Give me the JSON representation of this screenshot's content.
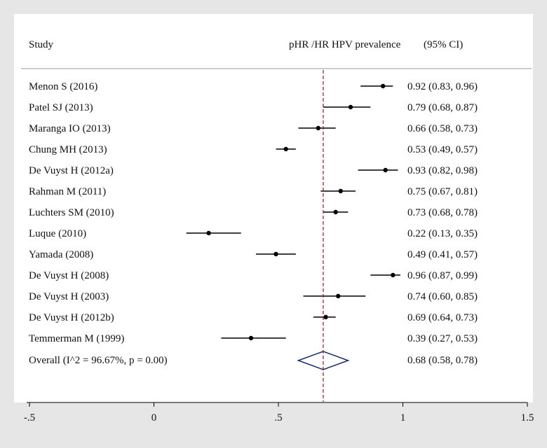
{
  "chart_data": {
    "type": "forest",
    "headers": {
      "study": "Study",
      "estimate": "pHR /HR HPV prevalence",
      "ci": "(95% CI)"
    },
    "studies": [
      {
        "label": "Menon S (2016)",
        "est": 0.92,
        "lo": 0.83,
        "hi": 0.96,
        "text": "0.92 (0.83, 0.96)"
      },
      {
        "label": "Patel SJ (2013)",
        "est": 0.79,
        "lo": 0.68,
        "hi": 0.87,
        "text": "0.79 (0.68, 0.87)"
      },
      {
        "label": "Maranga IO (2013)",
        "est": 0.66,
        "lo": 0.58,
        "hi": 0.73,
        "text": "0.66 (0.58, 0.73)"
      },
      {
        "label": "Chung MH (2013)",
        "est": 0.53,
        "lo": 0.49,
        "hi": 0.57,
        "text": "0.53 (0.49, 0.57)"
      },
      {
        "label": "De Vuyst H (2012a)",
        "est": 0.93,
        "lo": 0.82,
        "hi": 0.98,
        "text": "0.93 (0.82, 0.98)"
      },
      {
        "label": "Rahman M (2011)",
        "est": 0.75,
        "lo": 0.67,
        "hi": 0.81,
        "text": "0.75 (0.67, 0.81)"
      },
      {
        "label": "Luchters SM (2010)",
        "est": 0.73,
        "lo": 0.68,
        "hi": 0.78,
        "text": "0.73 (0.68, 0.78)"
      },
      {
        "label": "Luque (2010)",
        "est": 0.22,
        "lo": 0.13,
        "hi": 0.35,
        "text": "0.22 (0.13, 0.35)"
      },
      {
        "label": "Yamada (2008)",
        "est": 0.49,
        "lo": 0.41,
        "hi": 0.57,
        "text": "0.49 (0.41, 0.57)"
      },
      {
        "label": "De Vuyst H (2008)",
        "est": 0.96,
        "lo": 0.87,
        "hi": 0.99,
        "text": "0.96 (0.87, 0.99)"
      },
      {
        "label": "De Vuyst H (2003)",
        "est": 0.74,
        "lo": 0.6,
        "hi": 0.85,
        "text": "0.74 (0.60, 0.85)"
      },
      {
        "label": "De Vuyst H (2012b)",
        "est": 0.69,
        "lo": 0.64,
        "hi": 0.73,
        "text": "0.69 (0.64, 0.73)"
      },
      {
        "label": "Temmerman M (1999)",
        "est": 0.39,
        "lo": 0.27,
        "hi": 0.53,
        "text": "0.39 (0.27, 0.53)"
      }
    ],
    "overall": {
      "label": "Overall  (I^2 = 96.67%, p = 0.00)",
      "est": 0.68,
      "lo": 0.58,
      "hi": 0.78,
      "text": "0.68 (0.58, 0.78)"
    },
    "x_axis": {
      "range": [
        -0.5,
        1.5
      ],
      "ticks": [
        -0.5,
        0,
        0.5,
        1,
        1.5
      ],
      "tick_labels": [
        "-.5",
        "0",
        ".5",
        "1",
        "1.5"
      ]
    },
    "reference_line": 0.68,
    "colors": {
      "background": "#e6e6e6",
      "panel": "#ffffff",
      "reference": "#8b1a1a",
      "diamond": "#1a2a6c",
      "ink": "#111111"
    }
  }
}
